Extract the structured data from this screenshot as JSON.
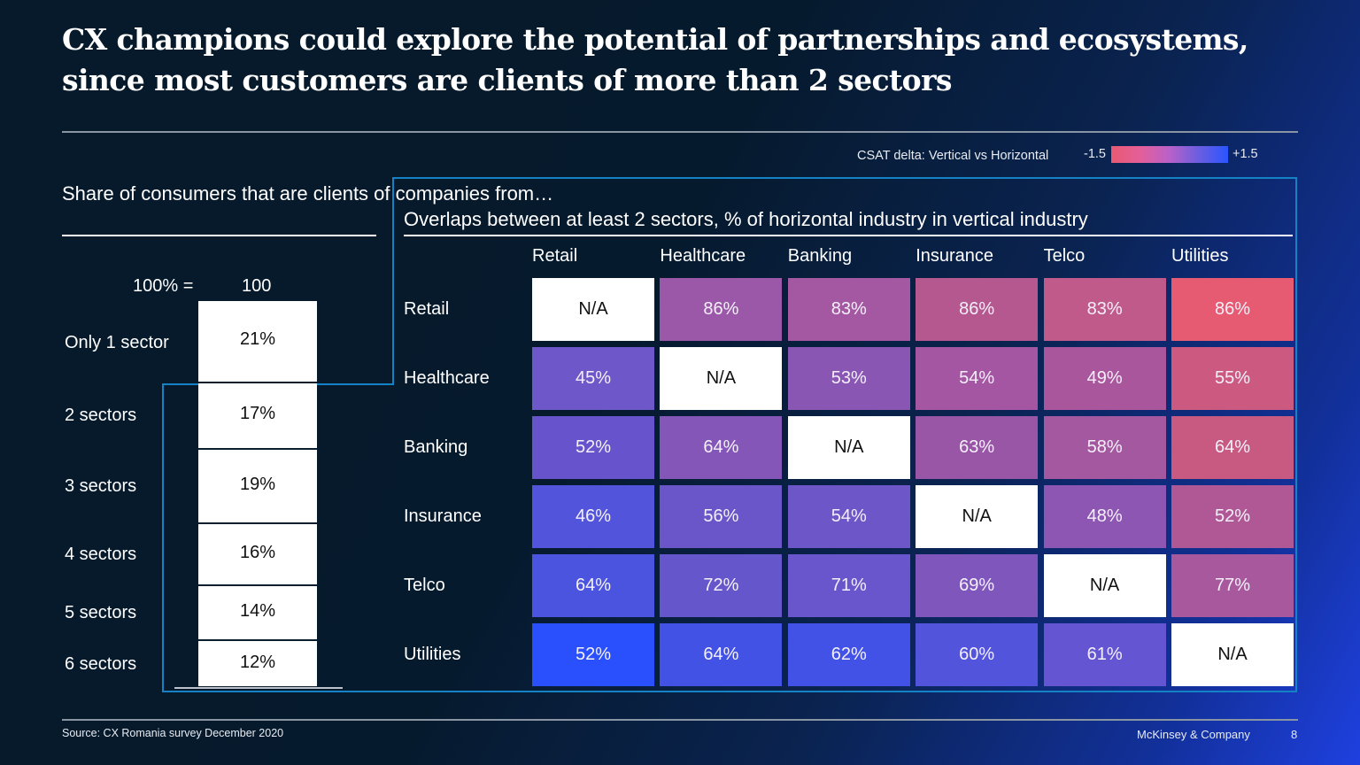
{
  "slide": {
    "title": "CX champions could explore the potential of partnerships and ecosystems, since most customers are clients of more than 2 sectors",
    "source": "Source: CX Romania survey December 2020",
    "brand": "McKinsey & Company",
    "page_number": "8"
  },
  "legend": {
    "label": "CSAT delta: Vertical vs Horizontal",
    "min_label": "-1.5",
    "max_label": "+1.5",
    "min_color": "#e85a72",
    "max_color": "#2a55ff"
  },
  "chart_data": [
    {
      "type": "bar",
      "subtype": "stacked-100",
      "title": "Share of consumers that are clients of companies from…",
      "base_label": "100% =",
      "base_value": "100",
      "categories": [
        "Only 1 sector",
        "2 sectors",
        "3 sectors",
        "4 sectors",
        "5 sectors",
        "6 sectors"
      ],
      "values": [
        21,
        17,
        19,
        16,
        14,
        12
      ],
      "value_labels": [
        "21%",
        "17%",
        "19%",
        "16%",
        "14%",
        "12%"
      ],
      "unit": "%"
    },
    {
      "type": "heatmap",
      "title": "Overlaps between at least 2 sectors, % of horizontal industry in vertical industry",
      "columns": [
        "Retail",
        "Healthcare",
        "Banking",
        "Insurance",
        "Telco",
        "Utilities"
      ],
      "rows": [
        "Retail",
        "Healthcare",
        "Banking",
        "Insurance",
        "Telco",
        "Utilities"
      ],
      "values": [
        [
          "N/A",
          "86%",
          "83%",
          "86%",
          "83%",
          "86%"
        ],
        [
          "45%",
          "N/A",
          "53%",
          "54%",
          "49%",
          "55%"
        ],
        [
          "52%",
          "64%",
          "N/A",
          "63%",
          "58%",
          "64%"
        ],
        [
          "46%",
          "56%",
          "54%",
          "N/A",
          "48%",
          "52%"
        ],
        [
          "64%",
          "72%",
          "71%",
          "69%",
          "N/A",
          "77%"
        ],
        [
          "52%",
          "64%",
          "62%",
          "60%",
          "61%",
          "N/A"
        ]
      ],
      "colors": [
        [
          "#ffffff",
          "#9c58a8",
          "#a458a2",
          "#b4588f",
          "#c05a8a",
          "#e65a72"
        ],
        [
          "#6e57c8",
          "#ffffff",
          "#8a56b4",
          "#a456a2",
          "#aa569c",
          "#cc5a80"
        ],
        [
          "#6754cc",
          "#8356b8",
          "#ffffff",
          "#9956a6",
          "#a458a0",
          "#c85a82"
        ],
        [
          "#5254dc",
          "#6a56c8",
          "#6c56c8",
          "#ffffff",
          "#8c56b2",
          "#b05896"
        ],
        [
          "#4a54de",
          "#6656cc",
          "#6a56cc",
          "#7e56bc",
          "#ffffff",
          "#a8589c"
        ],
        [
          "#2a50fe",
          "#4252e4",
          "#4252e6",
          "#5354dc",
          "#6456d2",
          "#ffffff"
        ]
      ],
      "color_scale": {
        "label": "CSAT delta: Vertical vs Horizontal",
        "min": -1.5,
        "max": 1.5,
        "min_color": "#e85a72",
        "max_color": "#2a55ff"
      }
    }
  ]
}
